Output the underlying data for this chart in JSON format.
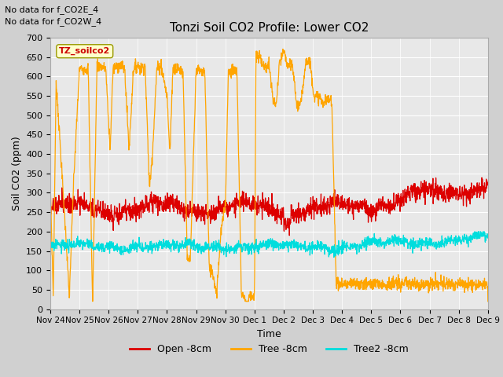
{
  "title": "Tonzi Soil CO2 Profile: Lower CO2",
  "ylabel": "Soil CO2 (ppm)",
  "xlabel": "Time",
  "annotation_lines": [
    "No data for f_CO2E_4",
    "No data for f_CO2W_4"
  ],
  "watermark": "TZ_soilco2",
  "ylim": [
    0,
    700
  ],
  "yticks": [
    0,
    50,
    100,
    150,
    200,
    250,
    300,
    350,
    400,
    450,
    500,
    550,
    600,
    650,
    700
  ],
  "bg_color": "#d0d0d0",
  "plot_bg_color": "#e8e8e8",
  "line_colors": {
    "open": "#dd0000",
    "tree": "#ffa500",
    "tree2": "#00dddd"
  },
  "legend_labels": [
    "Open -8cm",
    "Tree -8cm",
    "Tree2 -8cm"
  ],
  "xticklabels": [
    "Nov 24",
    "Nov 25",
    "Nov 26",
    "Nov 27",
    "Nov 28",
    "Nov 29",
    "Nov 30",
    "Dec 1",
    "Dec 2",
    "Dec 3",
    "Dec 4",
    "Dec 5",
    "Dec 6",
    "Dec 7",
    "Dec 8",
    "Dec 9"
  ],
  "n_days": 15,
  "n_points": 1800
}
